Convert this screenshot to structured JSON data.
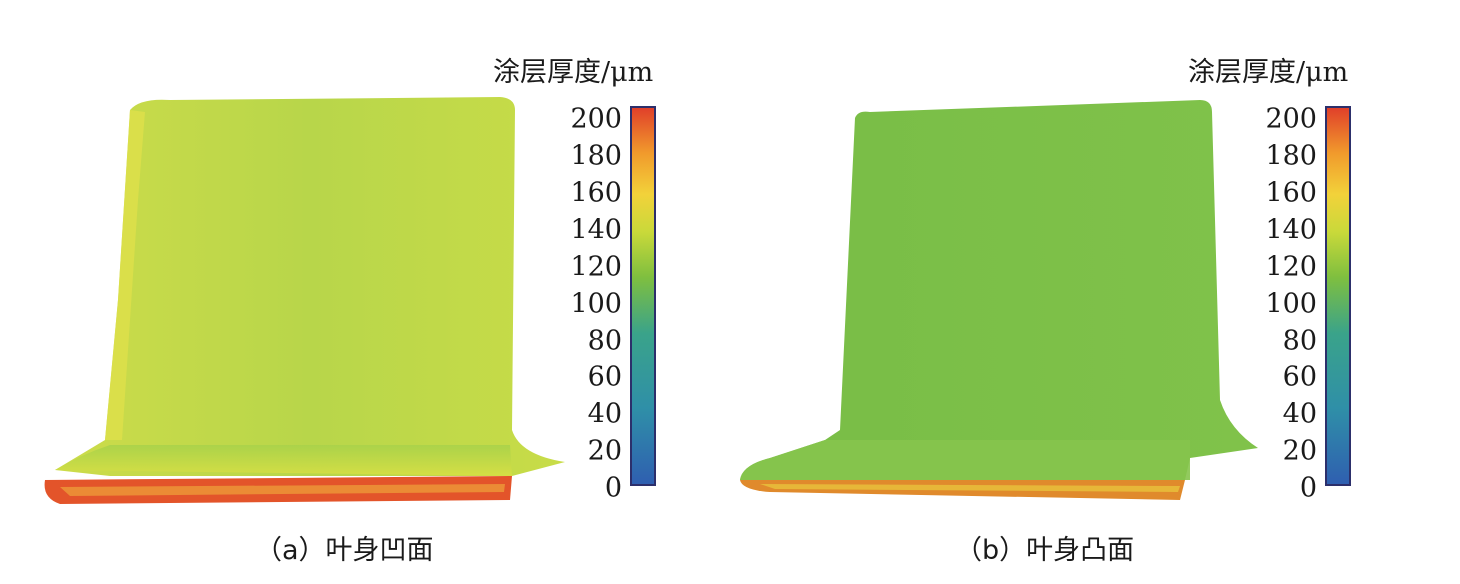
{
  "panels": [
    {
      "legend_title": "涂层厚度/μm",
      "colorbar_ticks": [
        "200",
        "180",
        "160",
        "140",
        "120",
        "100",
        "80",
        "60",
        "40",
        "20",
        "0"
      ],
      "caption": "（a）叶身凹面",
      "surface_color": "#b8d64a",
      "edge_color": "#e3542a"
    },
    {
      "legend_title": "涂层厚度/μm",
      "colorbar_ticks": [
        "200",
        "180",
        "160",
        "140",
        "120",
        "100",
        "80",
        "60",
        "40",
        "20",
        "0"
      ],
      "caption": "（b）叶身凸面",
      "surface_color": "#7cbf48",
      "edge_color": "#e08a2c"
    }
  ],
  "colorbar_colors": [
    "#2f5fb0",
    "#3aa38a",
    "#7fbf3f",
    "#f2d23a",
    "#e0402a"
  ]
}
